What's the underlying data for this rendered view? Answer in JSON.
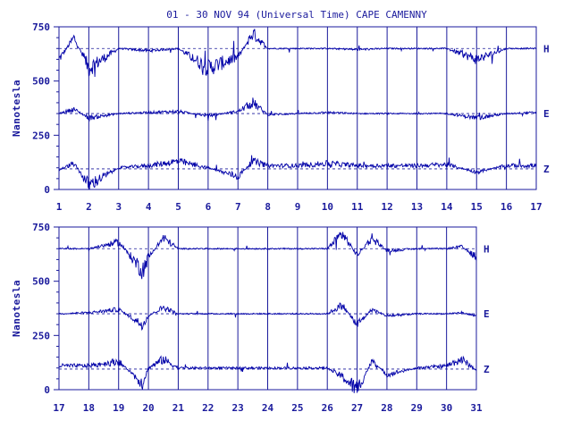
{
  "colors": {
    "ink": "#1a1a9c",
    "trace": "#0000a8",
    "background": "#ffffff"
  },
  "chart_data": {
    "type": "line",
    "title": "01 - 30 NOV 94 (Universal Time) CAPE CAMENNY",
    "ylabel": "Nanotesla",
    "ylim": [
      0,
      750
    ],
    "yticks": [
      0,
      250,
      500,
      750
    ],
    "grid": "vertical lines at each day boundary",
    "components": [
      "H",
      "E",
      "Z"
    ],
    "panels": [
      {
        "name": "top",
        "xlim": [
          1,
          17
        ],
        "xticks": [
          "1",
          "2",
          "3",
          "4",
          "5",
          "6",
          "7",
          "8",
          "9",
          "10",
          "11",
          "12",
          "13",
          "14",
          "15",
          "16",
          "17"
        ],
        "baselines": {
          "H": 650,
          "E": 350,
          "Z": 95
        },
        "series": [
          {
            "name": "H",
            "days": [
              1,
              1.5,
              2,
              3,
              4,
              5,
              6,
              7,
              7.5,
              8,
              9,
              10,
              11,
              12,
              13,
              14,
              15,
              16,
              17
            ],
            "values": [
              600,
              700,
              560,
              650,
              640,
              650,
              560,
              610,
              720,
              650,
              650,
              650,
              645,
              650,
              650,
              650,
              600,
              650,
              650
            ]
          },
          {
            "name": "E",
            "days": [
              1,
              1.5,
              2,
              3,
              4,
              5,
              6,
              7,
              7.5,
              8,
              9,
              10,
              11,
              12,
              13,
              14,
              15,
              16,
              17
            ],
            "values": [
              350,
              370,
              330,
              350,
              355,
              360,
              340,
              360,
              400,
              345,
              350,
              355,
              350,
              350,
              350,
              350,
              330,
              350,
              355
            ]
          },
          {
            "name": "Z",
            "days": [
              1,
              1.5,
              2,
              3,
              4,
              5,
              6,
              7,
              7.5,
              8,
              9,
              10,
              11,
              12,
              13,
              14,
              15,
              16,
              17
            ],
            "values": [
              90,
              120,
              20,
              100,
              110,
              130,
              100,
              60,
              130,
              110,
              110,
              120,
              110,
              110,
              110,
              115,
              80,
              110,
              110
            ]
          }
        ]
      },
      {
        "name": "bottom",
        "xlim": [
          17,
          31
        ],
        "xticks": [
          "17",
          "18",
          "19",
          "20",
          "21",
          "22",
          "23",
          "24",
          "25",
          "26",
          "27",
          "28",
          "29",
          "30",
          "31"
        ],
        "baselines": {
          "H": 650,
          "E": 350,
          "Z": 95
        },
        "series": [
          {
            "name": "H",
            "days": [
              17,
              18,
              19,
              19.8,
              20,
              20.5,
              21,
              22,
              23,
              24,
              25,
              26,
              26.5,
              27,
              27.5,
              28,
              29,
              30,
              30.5,
              31
            ],
            "values": [
              650,
              650,
              680,
              550,
              610,
              700,
              650,
              650,
              650,
              650,
              650,
              650,
              720,
              620,
              700,
              640,
              650,
              650,
              660,
              610
            ]
          },
          {
            "name": "E",
            "days": [
              17,
              18,
              19,
              19.8,
              20,
              20.5,
              21,
              22,
              23,
              24,
              25,
              26,
              26.5,
              27,
              27.5,
              28,
              29,
              30,
              30.5,
              31
            ],
            "values": [
              350,
              355,
              370,
              300,
              340,
              380,
              350,
              350,
              350,
              350,
              350,
              350,
              390,
              300,
              370,
              340,
              350,
              350,
              355,
              340
            ]
          },
          {
            "name": "Z",
            "days": [
              17,
              18,
              19,
              19.8,
              20,
              20.5,
              21,
              22,
              23,
              24,
              25,
              26,
              26.5,
              27,
              27.5,
              28,
              29,
              30,
              30.5,
              31
            ],
            "values": [
              110,
              110,
              130,
              30,
              100,
              140,
              100,
              100,
              100,
              100,
              100,
              100,
              60,
              0,
              130,
              70,
              100,
              110,
              140,
              90
            ]
          }
        ]
      }
    ]
  }
}
